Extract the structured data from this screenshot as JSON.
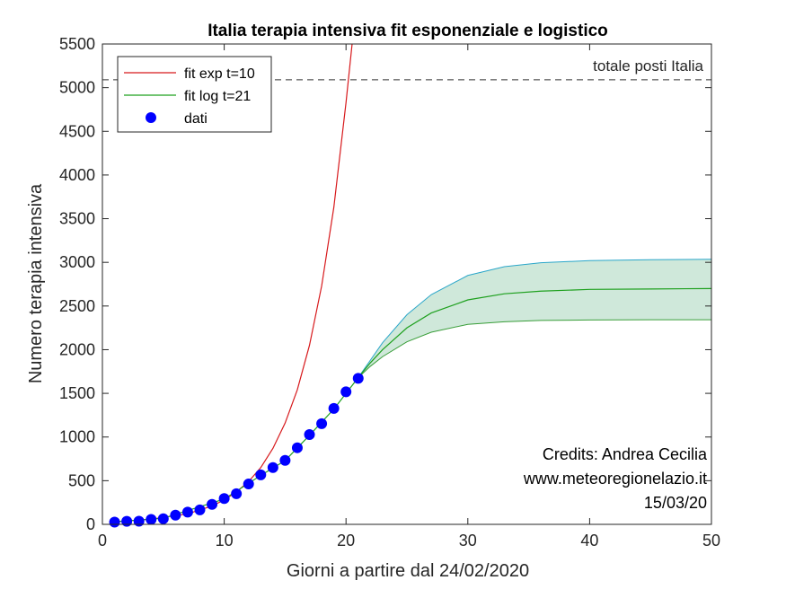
{
  "chart_data": {
    "type": "line",
    "title": "Italia terapia intensiva  fit esponenziale e logistico",
    "xlabel": "Giorni a partire dal 24/02/2020",
    "ylabel": "Numero terapia intensiva",
    "xlim": [
      0,
      50
    ],
    "ylim": [
      0,
      5500
    ],
    "xticks": [
      0,
      10,
      20,
      30,
      40,
      50
    ],
    "yticks": [
      0,
      500,
      1000,
      1500,
      2000,
      2500,
      3000,
      3500,
      4000,
      4500,
      5000,
      5500
    ],
    "grid": false,
    "legend_position": "top-left",
    "reference_line": {
      "label": "totale posti Italia",
      "y": 5090
    },
    "credits": [
      "Credits: Andrea Cecilia",
      "www.meteoregionelazio.it",
      "15/03/20"
    ],
    "series": [
      {
        "name": "fit exp t=10",
        "kind": "line",
        "color": "#d7191c",
        "x": [
          1,
          4,
          7,
          9,
          10,
          11,
          12,
          13,
          14,
          15,
          16,
          17,
          18,
          19,
          20,
          20.5
        ],
        "y": [
          30,
          60,
          120,
          210,
          280,
          370,
          490,
          650,
          870,
          1160,
          1540,
          2050,
          2730,
          3630,
          4830,
          5500
        ]
      },
      {
        "name": "fit log t=21",
        "kind": "line",
        "color": "#1ea01e",
        "x": [
          1,
          5,
          10,
          13,
          15,
          17,
          19,
          21,
          22,
          23,
          25,
          27,
          30,
          33,
          36,
          40,
          45,
          50
        ],
        "y": [
          30,
          70,
          290,
          560,
          730,
          1020,
          1320,
          1680,
          1850,
          2000,
          2250,
          2420,
          2570,
          2640,
          2670,
          2690,
          2695,
          2700
        ]
      },
      {
        "name": "dati",
        "kind": "scatter",
        "color": "#0000ff",
        "x": [
          1,
          2,
          3,
          4,
          5,
          6,
          7,
          8,
          9,
          10,
          11,
          12,
          13,
          14,
          15,
          16,
          17,
          18,
          19,
          20,
          21
        ],
        "y": [
          26,
          35,
          36,
          56,
          64,
          105,
          140,
          166,
          229,
          295,
          351,
          462,
          567,
          650,
          733,
          877,
          1028,
          1153,
          1328,
          1518,
          1672
        ]
      }
    ],
    "band": {
      "fill": "#cfe8da",
      "x": [
        21,
        22,
        23,
        25,
        27,
        30,
        33,
        36,
        40,
        45,
        50
      ],
      "upper": [
        1680,
        1880,
        2080,
        2400,
        2630,
        2850,
        2950,
        2995,
        3020,
        3030,
        3035
      ],
      "lower": [
        1680,
        1810,
        1920,
        2090,
        2200,
        2290,
        2320,
        2335,
        2340,
        2342,
        2343
      ],
      "upper_color": "#2aa6c9",
      "lower_color": "#3a9e3a"
    }
  }
}
